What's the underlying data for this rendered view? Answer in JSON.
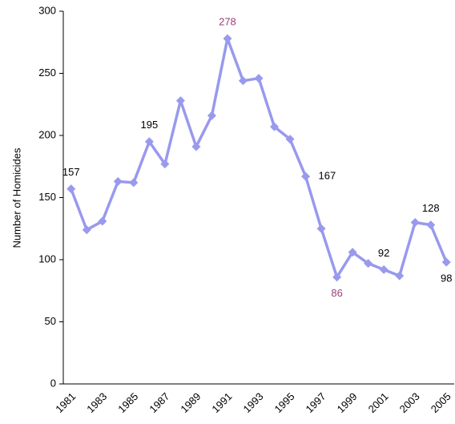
{
  "chart_data": {
    "type": "line",
    "y_label": "Number of Homicides",
    "categories": [
      "1981",
      null,
      "1983",
      null,
      "1985",
      null,
      "1987",
      null,
      "1989",
      null,
      "1991",
      null,
      "1993",
      null,
      "1995",
      null,
      "1997",
      null,
      "1999",
      null,
      "2001",
      null,
      "2003",
      null,
      "2005"
    ],
    "series": [
      {
        "name": "Homicides",
        "color": "#9999ee",
        "values": [
          157,
          124,
          131,
          163,
          162,
          195,
          177,
          228,
          191,
          216,
          278,
          244,
          246,
          207,
          197,
          167,
          125,
          86,
          106,
          97,
          92,
          87,
          130,
          128,
          98
        ]
      }
    ],
    "label_indices": [
      0,
      5,
      10,
      15,
      17,
      20,
      23,
      24
    ],
    "highlight_indices": [
      10,
      17
    ],
    "label_color": "#000000",
    "highlight_color": "#9b3f7a",
    "ylim": [
      0,
      300
    ],
    "yticks": [
      0,
      50,
      100,
      150,
      200,
      250,
      300
    ],
    "grid": false
  }
}
